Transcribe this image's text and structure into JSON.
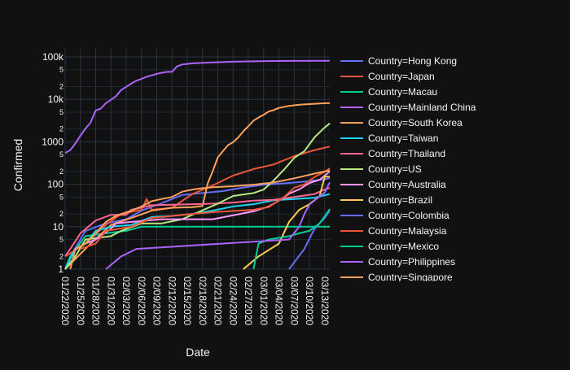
{
  "chart_data": {
    "type": "line",
    "title": "",
    "xlabel": "Date",
    "ylabel": "Confirmed",
    "y_scale": "log",
    "ylim": [
      1,
      100000
    ],
    "x_ticks": [
      "01/22/2020",
      "01/25/2020",
      "01/28/2020",
      "01/31/2020",
      "02/03/2020",
      "02/06/2020",
      "02/09/2020",
      "02/12/2020",
      "02/15/2020",
      "02/18/2020",
      "02/21/2020",
      "02/24/2020",
      "02/27/2020",
      "03/01/2020",
      "03/04/2020",
      "03/07/2020",
      "03/10/2020",
      "03/13/2020"
    ],
    "y_major_ticks": [
      {
        "value": 1,
        "label": "1"
      },
      {
        "value": 10,
        "label": "10"
      },
      {
        "value": 100,
        "label": "100"
      },
      {
        "value": 1000,
        "label": "1000"
      },
      {
        "value": 10000,
        "label": "10k"
      },
      {
        "value": 100000,
        "label": "100k"
      }
    ],
    "y_minor_ticks": [
      {
        "value": 2,
        "label": "2"
      },
      {
        "value": 5,
        "label": "5"
      },
      {
        "value": 20,
        "label": "2"
      },
      {
        "value": 50,
        "label": "5"
      },
      {
        "value": 200,
        "label": "2"
      },
      {
        "value": 500,
        "label": "5"
      },
      {
        "value": 2000,
        "label": "2"
      },
      {
        "value": 5000,
        "label": "5"
      },
      {
        "value": 20000,
        "label": "2"
      },
      {
        "value": 50000,
        "label": "5"
      }
    ],
    "grid": true,
    "legend_position": "right",
    "series": [
      {
        "name": "Country=Hong Kong",
        "color": "#636efa",
        "points": [
          [
            "01/22/2020",
            0
          ],
          [
            "01/23/2020",
            2
          ],
          [
            "01/26/2020",
            8
          ],
          [
            "01/30/2020",
            12
          ],
          [
            "02/03/2020",
            15
          ],
          [
            "02/06/2020",
            24
          ],
          [
            "02/10/2020",
            36
          ],
          [
            "02/14/2020",
            56
          ],
          [
            "02/18/2020",
            62
          ],
          [
            "02/22/2020",
            69
          ],
          [
            "02/26/2020",
            84
          ],
          [
            "03/01/2020",
            98
          ],
          [
            "03/05/2020",
            105
          ],
          [
            "03/09/2020",
            115
          ],
          [
            "03/13/2020",
            131
          ],
          [
            "03/14/2020",
            140
          ]
        ]
      },
      {
        "name": "Country=Japan",
        "color": "#ef553b",
        "points": [
          [
            "01/22/2020",
            2
          ],
          [
            "01/26/2020",
            4
          ],
          [
            "01/30/2020",
            11
          ],
          [
            "02/02/2020",
            20
          ],
          [
            "02/06/2020",
            25
          ],
          [
            "02/07/2020",
            45
          ],
          [
            "02/08/2020",
            25
          ],
          [
            "02/12/2020",
            28
          ],
          [
            "02/16/2020",
            59
          ],
          [
            "02/20/2020",
            94
          ],
          [
            "02/24/2020",
            160
          ],
          [
            "02/28/2020",
            228
          ],
          [
            "03/03/2020",
            293
          ],
          [
            "03/07/2020",
            461
          ],
          [
            "03/11/2020",
            639
          ],
          [
            "03/14/2020",
            773
          ]
        ]
      },
      {
        "name": "Country=Macau",
        "color": "#00cc96",
        "points": [
          [
            "01/22/2020",
            1
          ],
          [
            "01/23/2020",
            2
          ],
          [
            "01/26/2020",
            6
          ],
          [
            "01/30/2020",
            7
          ],
          [
            "02/03/2020",
            8
          ],
          [
            "02/06/2020",
            10
          ],
          [
            "02/10/2020",
            10
          ],
          [
            "02/14/2020",
            10
          ],
          [
            "02/18/2020",
            10
          ],
          [
            "02/24/2020",
            10
          ],
          [
            "03/04/2020",
            10
          ],
          [
            "03/14/2020",
            10
          ]
        ]
      },
      {
        "name": "Country=Mainland China",
        "color": "#ab63fa",
        "points": [
          [
            "01/22/2020",
            547
          ],
          [
            "01/23/2020",
            639
          ],
          [
            "01/24/2020",
            916
          ],
          [
            "01/25/2020",
            1399
          ],
          [
            "01/26/2020",
            2062
          ],
          [
            "01/27/2020",
            2863
          ],
          [
            "01/28/2020",
            5494
          ],
          [
            "01/29/2020",
            6070
          ],
          [
            "01/30/2020",
            8124
          ],
          [
            "01/31/2020",
            9783
          ],
          [
            "02/01/2020",
            11871
          ],
          [
            "02/02/2020",
            16607
          ],
          [
            "02/03/2020",
            19693
          ],
          [
            "02/04/2020",
            23680
          ],
          [
            "02/05/2020",
            27409
          ],
          [
            "02/06/2020",
            30553
          ],
          [
            "02/07/2020",
            34075
          ],
          [
            "02/08/2020",
            36778
          ],
          [
            "02/09/2020",
            39790
          ],
          [
            "02/10/2020",
            42306
          ],
          [
            "02/11/2020",
            44327
          ],
          [
            "02/12/2020",
            44699
          ],
          [
            "02/13/2020",
            59832
          ],
          [
            "02/14/2020",
            66292
          ],
          [
            "02/15/2020",
            68347
          ],
          [
            "02/16/2020",
            70446
          ],
          [
            "02/18/2020",
            72364
          ],
          [
            "02/20/2020",
            74546
          ],
          [
            "02/24/2020",
            77241
          ],
          [
            "02/28/2020",
            78824
          ],
          [
            "03/03/2020",
            80151
          ],
          [
            "03/07/2020",
            80651
          ],
          [
            "03/11/2020",
            80908
          ],
          [
            "03/14/2020",
            80977
          ]
        ]
      },
      {
        "name": "Country=South Korea",
        "color": "#ffa15a",
        "points": [
          [
            "01/22/2020",
            1
          ],
          [
            "01/27/2020",
            4
          ],
          [
            "01/31/2020",
            11
          ],
          [
            "02/04/2020",
            16
          ],
          [
            "02/08/2020",
            24
          ],
          [
            "02/12/2020",
            28
          ],
          [
            "02/16/2020",
            29
          ],
          [
            "02/18/2020",
            31
          ],
          [
            "02/19/2020",
            104
          ],
          [
            "02/20/2020",
            204
          ],
          [
            "02/21/2020",
            433
          ],
          [
            "02/22/2020",
            602
          ],
          [
            "02/23/2020",
            833
          ],
          [
            "02/24/2020",
            977
          ],
          [
            "02/25/2020",
            1261
          ],
          [
            "02/26/2020",
            1766
          ],
          [
            "02/27/2020",
            2337
          ],
          [
            "02/28/2020",
            3150
          ],
          [
            "02/29/2020",
            3736
          ],
          [
            "03/01/2020",
            4335
          ],
          [
            "03/02/2020",
            5186
          ],
          [
            "03/03/2020",
            5621
          ],
          [
            "03/04/2020",
            6284
          ],
          [
            "03/06/2020",
            7041
          ],
          [
            "03/08/2020",
            7478
          ],
          [
            "03/10/2020",
            7755
          ],
          [
            "03/12/2020",
            7979
          ],
          [
            "03/14/2020",
            8162
          ]
        ]
      },
      {
        "name": "Country=Taiwan",
        "color": "#19d3f3",
        "points": [
          [
            "01/22/2020",
            1
          ],
          [
            "01/24/2020",
            3
          ],
          [
            "01/26/2020",
            4
          ],
          [
            "01/28/2020",
            8
          ],
          [
            "01/31/2020",
            10
          ],
          [
            "02/04/2020",
            11
          ],
          [
            "02/08/2020",
            17
          ],
          [
            "02/12/2020",
            18
          ],
          [
            "02/16/2020",
            20
          ],
          [
            "02/20/2020",
            24
          ],
          [
            "02/24/2020",
            30
          ],
          [
            "02/28/2020",
            34
          ],
          [
            "03/03/2020",
            42
          ],
          [
            "03/07/2020",
            45
          ],
          [
            "03/11/2020",
            48
          ],
          [
            "03/14/2020",
            59
          ]
        ]
      },
      {
        "name": "Country=Thailand",
        "color": "#ff6692",
        "points": [
          [
            "01/22/2020",
            2
          ],
          [
            "01/23/2020",
            3
          ],
          [
            "01/25/2020",
            7
          ],
          [
            "01/28/2020",
            14
          ],
          [
            "01/31/2020",
            19
          ],
          [
            "02/03/2020",
            19
          ],
          [
            "02/04/2020",
            25
          ],
          [
            "02/08/2020",
            32
          ],
          [
            "02/12/2020",
            33
          ],
          [
            "02/16/2020",
            34
          ],
          [
            "02/20/2020",
            35
          ],
          [
            "02/24/2020",
            37
          ],
          [
            "02/28/2020",
            41
          ],
          [
            "03/03/2020",
            43
          ],
          [
            "03/07/2020",
            50
          ],
          [
            "03/11/2020",
            59
          ],
          [
            "03/13/2020",
            75
          ],
          [
            "03/14/2020",
            82
          ]
        ]
      },
      {
        "name": "Country=US",
        "color": "#b6e880",
        "points": [
          [
            "01/22/2020",
            1
          ],
          [
            "01/24/2020",
            2
          ],
          [
            "01/26/2020",
            5
          ],
          [
            "01/31/2020",
            6
          ],
          [
            "02/02/2020",
            8
          ],
          [
            "02/06/2020",
            12
          ],
          [
            "02/10/2020",
            12
          ],
          [
            "02/14/2020",
            15
          ],
          [
            "02/21/2020",
            35
          ],
          [
            "02/24/2020",
            53
          ],
          [
            "02/28/2020",
            62
          ],
          [
            "03/01/2020",
            75
          ],
          [
            "03/03/2020",
            124
          ],
          [
            "03/05/2020",
            221
          ],
          [
            "03/07/2020",
            417
          ],
          [
            "03/09/2020",
            605
          ],
          [
            "03/11/2020",
            1281
          ],
          [
            "03/13/2020",
            2179
          ],
          [
            "03/14/2020",
            2727
          ]
        ]
      },
      {
        "name": "Country=Australia",
        "color": "#ff97ff",
        "points": [
          [
            "01/26/2020",
            4
          ],
          [
            "01/28/2020",
            5
          ],
          [
            "01/31/2020",
            9
          ],
          [
            "02/01/2020",
            12
          ],
          [
            "02/04/2020",
            13
          ],
          [
            "02/10/2020",
            15
          ],
          [
            "02/20/2020",
            15
          ],
          [
            "02/28/2020",
            23
          ],
          [
            "03/02/2020",
            30
          ],
          [
            "03/04/2020",
            41
          ],
          [
            "03/06/2020",
            60
          ],
          [
            "03/08/2020",
            76
          ],
          [
            "03/10/2020",
            107
          ],
          [
            "03/12/2020",
            128
          ],
          [
            "03/14/2020",
            200
          ]
        ]
      },
      {
        "name": "Country=Brazil",
        "color": "#fecb52",
        "points": [
          [
            "02/26/2020",
            1
          ],
          [
            "02/29/2020",
            2
          ],
          [
            "03/04/2020",
            4
          ],
          [
            "03/06/2020",
            13
          ],
          [
            "03/08/2020",
            25
          ],
          [
            "03/10/2020",
            34
          ],
          [
            "03/12/2020",
            52
          ],
          [
            "03/13/2020",
            151
          ],
          [
            "03/14/2020",
            151
          ]
        ]
      },
      {
        "name": "Country=Colombia",
        "color": "#636efa",
        "points": [
          [
            "03/06/2020",
            1
          ],
          [
            "03/09/2020",
            3
          ],
          [
            "03/11/2020",
            9
          ],
          [
            "03/13/2020",
            16
          ],
          [
            "03/14/2020",
            24
          ]
        ]
      },
      {
        "name": "Country=Malaysia",
        "color": "#ef553b",
        "points": [
          [
            "01/25/2020",
            3
          ],
          [
            "01/28/2020",
            4
          ],
          [
            "01/30/2020",
            8
          ],
          [
            "02/04/2020",
            10
          ],
          [
            "02/08/2020",
            16
          ],
          [
            "02/14/2020",
            19
          ],
          [
            "02/20/2020",
            22
          ],
          [
            "02/28/2020",
            25
          ],
          [
            "03/02/2020",
            29
          ],
          [
            "03/05/2020",
            50
          ],
          [
            "03/07/2020",
            83
          ],
          [
            "03/09/2020",
            99
          ],
          [
            "03/11/2020",
            149
          ],
          [
            "03/13/2020",
            197
          ],
          [
            "03/14/2020",
            238
          ]
        ]
      },
      {
        "name": "Country=Mexico",
        "color": "#00cc96",
        "points": [
          [
            "02/28/2020",
            1
          ],
          [
            "02/29/2020",
            4
          ],
          [
            "03/02/2020",
            5
          ],
          [
            "03/06/2020",
            6
          ],
          [
            "03/08/2020",
            7
          ],
          [
            "03/10/2020",
            8
          ],
          [
            "03/12/2020",
            12
          ],
          [
            "03/14/2020",
            26
          ]
        ]
      },
      {
        "name": "Country=Philippines",
        "color": "#ab63fa",
        "points": [
          [
            "01/30/2020",
            1
          ],
          [
            "02/02/2020",
            2
          ],
          [
            "02/05/2020",
            3
          ],
          [
            "03/06/2020",
            5
          ],
          [
            "03/08/2020",
            10
          ],
          [
            "03/09/2020",
            20
          ],
          [
            "03/10/2020",
            33
          ],
          [
            "03/12/2020",
            52
          ],
          [
            "03/13/2020",
            64
          ],
          [
            "03/14/2020",
            111
          ]
        ]
      },
      {
        "name": "Country=Singapore",
        "color": "#ffa15a",
        "points": [
          [
            "01/23/2020",
            1
          ],
          [
            "01/24/2020",
            3
          ],
          [
            "01/26/2020",
            4
          ],
          [
            "01/28/2020",
            7
          ],
          [
            "01/30/2020",
            13
          ],
          [
            "02/01/2020",
            18
          ],
          [
            "02/04/2020",
            24
          ],
          [
            "02/06/2020",
            30
          ],
          [
            "02/08/2020",
            40
          ],
          [
            "02/10/2020",
            45
          ],
          [
            "02/12/2020",
            50
          ],
          [
            "02/14/2020",
            67
          ],
          [
            "02/16/2020",
            75
          ],
          [
            "02/18/2020",
            81
          ],
          [
            "02/20/2020",
            85
          ],
          [
            "02/24/2020",
            90
          ],
          [
            "02/28/2020",
            98
          ],
          [
            "03/03/2020",
            110
          ],
          [
            "03/07/2020",
            138
          ],
          [
            "03/11/2020",
            178
          ],
          [
            "03/13/2020",
            200
          ],
          [
            "03/14/2020",
            212
          ]
        ]
      }
    ]
  }
}
